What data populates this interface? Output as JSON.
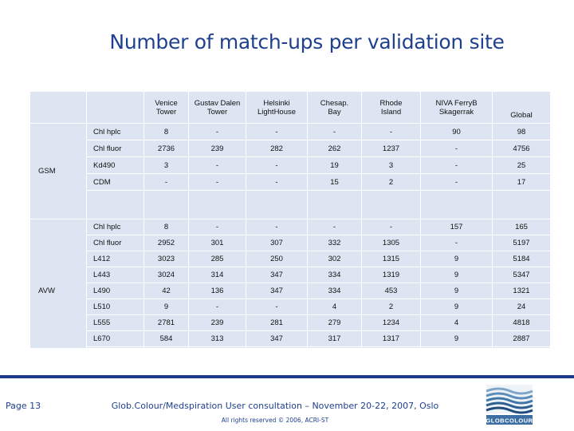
{
  "title": "Number of match-ups per validation site",
  "table": {
    "columns": [
      "Venice Tower",
      "Gustav Dalen Tower",
      "Helsinki LightHouse",
      "Chesap. Bay",
      "Rhode Island",
      "NIVA FerryB Skagerrak",
      "Global"
    ],
    "column_lines": [
      [
        "Venice",
        "Tower"
      ],
      [
        "Gustav Dalen",
        "Tower"
      ],
      [
        "Helsinki",
        "LightHouse"
      ],
      [
        "Chesap.",
        "Bay"
      ],
      [
        "Rhode",
        "Island"
      ],
      [
        "NIVA FerryB",
        "Skagerrak"
      ],
      [
        "Global",
        ""
      ]
    ],
    "groups": [
      {
        "name": "GSM",
        "rows": [
          {
            "param": "Chl hplc",
            "values": [
              "8",
              "-",
              "-",
              "-",
              "-",
              "90",
              "98"
            ]
          },
          {
            "param": "Chl fluor",
            "values": [
              "2736",
              "239",
              "282",
              "262",
              "1237",
              "-",
              "4756"
            ]
          },
          {
            "param": "Kd490",
            "values": [
              "3",
              "-",
              "-",
              "19",
              "3",
              "-",
              "25"
            ]
          },
          {
            "param": "CDM",
            "values": [
              "-",
              "-",
              "-",
              "15",
              "2",
              "-",
              "17"
            ]
          }
        ]
      },
      {
        "name": "AVW",
        "rows": [
          {
            "param": "Chl hplc",
            "values": [
              "8",
              "-",
              "-",
              "-",
              "-",
              "157",
              "165"
            ]
          },
          {
            "param": "Chl fluor",
            "values": [
              "2952",
              "301",
              "307",
              "332",
              "1305",
              "-",
              "5197"
            ]
          },
          {
            "param": "L412",
            "values": [
              "3023",
              "285",
              "250",
              "302",
              "1315",
              "9",
              "5184"
            ]
          },
          {
            "param": "L443",
            "values": [
              "3024",
              "314",
              "347",
              "334",
              "1319",
              "9",
              "5347"
            ]
          },
          {
            "param": "L490",
            "values": [
              "42",
              "136",
              "347",
              "334",
              "453",
              "9",
              "1321"
            ]
          },
          {
            "param": "L510",
            "values": [
              "9",
              "-",
              "-",
              "4",
              "2",
              "9",
              "24"
            ]
          },
          {
            "param": "L555",
            "values": [
              "2781",
              "239",
              "281",
              "279",
              "1234",
              "4",
              "4818"
            ]
          },
          {
            "param": "L670",
            "values": [
              "584",
              "313",
              "347",
              "317",
              "1317",
              "9",
              "2887"
            ]
          }
        ]
      }
    ]
  },
  "footer": {
    "page": "Page 13",
    "event": "Glob.Colour/Medspiration User consultation – November 20-22, 2007, Oslo",
    "rights": "All rights reserved © 2006, ACRI-ST",
    "logo_text": "GLOBCOLOUR"
  },
  "colors": {
    "accent": "#1f3f8f",
    "table_bg": "#dde5f2",
    "bar": "#1e3a8a"
  }
}
